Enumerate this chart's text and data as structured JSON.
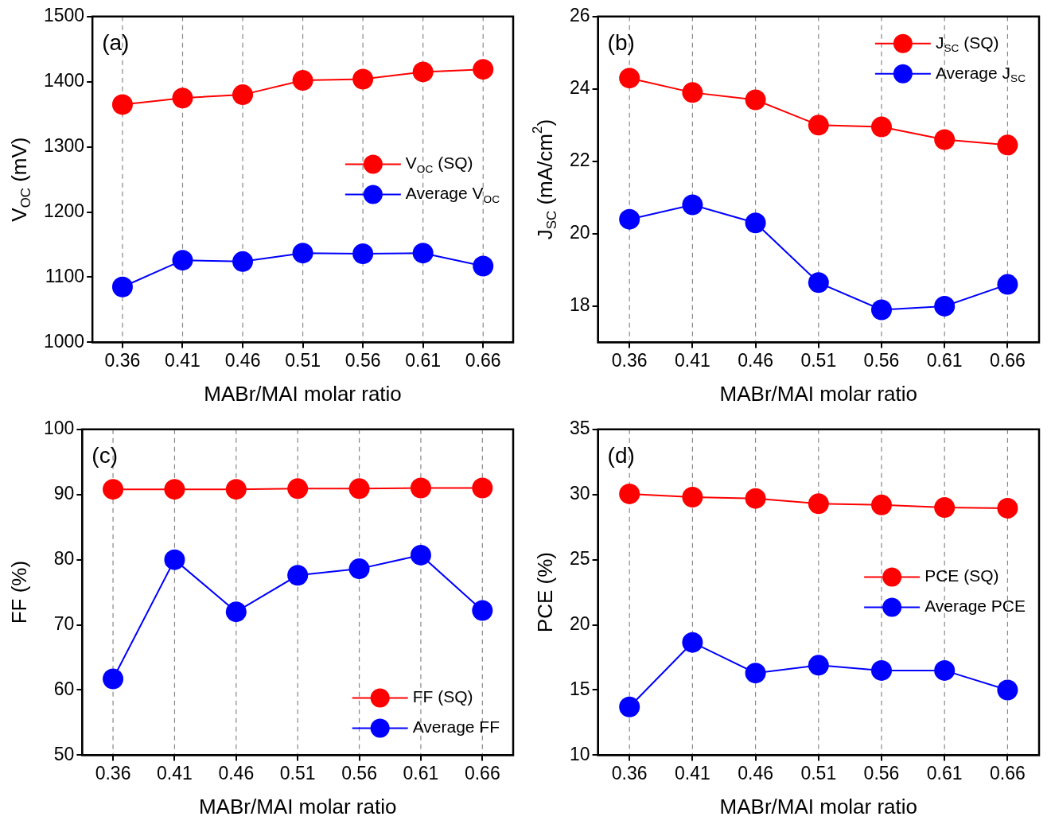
{
  "chart_data": [
    {
      "type": "line",
      "title": "(a)",
      "xlabel": "MABr/MAI molar ratio",
      "ylabel": "V$_{OC}$ (mV)",
      "categories": [
        "0.36",
        "0.41",
        "0.46",
        "0.51",
        "0.56",
        "0.61",
        "0.66"
      ],
      "series": [
        {
          "name": "V$_{OC}$ (SQ)",
          "color": "#ff0000",
          "values": [
            1365,
            1375,
            1380,
            1402,
            1404,
            1415,
            1419
          ]
        },
        {
          "name": "Average V$_{OC}$",
          "color": "#0000ff",
          "values": [
            1085,
            1126,
            1124,
            1137,
            1136,
            1137,
            1117
          ]
        }
      ],
      "ylim": [
        1000,
        1500
      ],
      "yticks": [
        1000,
        1100,
        1200,
        1300,
        1400,
        1500
      ],
      "grid": "x",
      "legend": "center right",
      "marker": "circle"
    },
    {
      "type": "line",
      "title": "(b)",
      "xlabel": "MABr/MAI molar ratio",
      "ylabel": "J$_{SC}$ (mA/cm$^{2}$)",
      "categories": [
        "0.36",
        "0.41",
        "0.46",
        "0.51",
        "0.56",
        "0.61",
        "0.66"
      ],
      "series": [
        {
          "name": "J$_{SC}$ (SQ)",
          "color": "#ff0000",
          "values": [
            24.3,
            23.9,
            23.7,
            23.0,
            22.95,
            22.6,
            22.45
          ]
        },
        {
          "name": "Average J$_{SC}$",
          "color": "#0000ff",
          "values": [
            20.4,
            20.8,
            20.3,
            18.65,
            17.9,
            18.0,
            18.6
          ]
        }
      ],
      "ylim": [
        17,
        26
      ],
      "yticks": [
        18,
        20,
        22,
        24,
        26
      ],
      "grid": "x",
      "legend": "top right",
      "marker": "circle"
    },
    {
      "type": "line",
      "title": "(c)",
      "xlabel": "MABr/MAI molar ratio",
      "ylabel": "FF (%)",
      "categories": [
        "0.36",
        "0.41",
        "0.46",
        "0.51",
        "0.56",
        "0.61",
        "0.66"
      ],
      "series": [
        {
          "name": "FF (SQ)",
          "color": "#ff0000",
          "values": [
            90.8,
            90.8,
            90.8,
            90.9,
            90.9,
            91.0,
            91.0
          ]
        },
        {
          "name": "Average FF",
          "color": "#0000ff",
          "values": [
            61.7,
            80.0,
            72.0,
            77.6,
            78.6,
            80.7,
            72.2
          ]
        }
      ],
      "ylim": [
        50,
        100
      ],
      "yticks": [
        50,
        60,
        70,
        80,
        90,
        100
      ],
      "grid": "x",
      "legend": "bottom right",
      "marker": "circle"
    },
    {
      "type": "line",
      "title": "(d)",
      "xlabel": "MABr/MAI molar ratio",
      "ylabel": "PCE (%)",
      "categories": [
        "0.36",
        "0.41",
        "0.46",
        "0.51",
        "0.56",
        "0.61",
        "0.66"
      ],
      "series": [
        {
          "name": "PCE (SQ)",
          "color": "#ff0000",
          "values": [
            30.05,
            29.8,
            29.7,
            29.3,
            29.2,
            29.0,
            28.95
          ]
        },
        {
          "name": "Average PCE",
          "color": "#0000ff",
          "values": [
            13.7,
            18.65,
            16.3,
            16.9,
            16.5,
            16.5,
            15.0
          ]
        }
      ],
      "ylim": [
        10,
        35
      ],
      "yticks": [
        10,
        15,
        20,
        25,
        30,
        35
      ],
      "grid": "x",
      "legend": "center right",
      "marker": "circle"
    }
  ]
}
